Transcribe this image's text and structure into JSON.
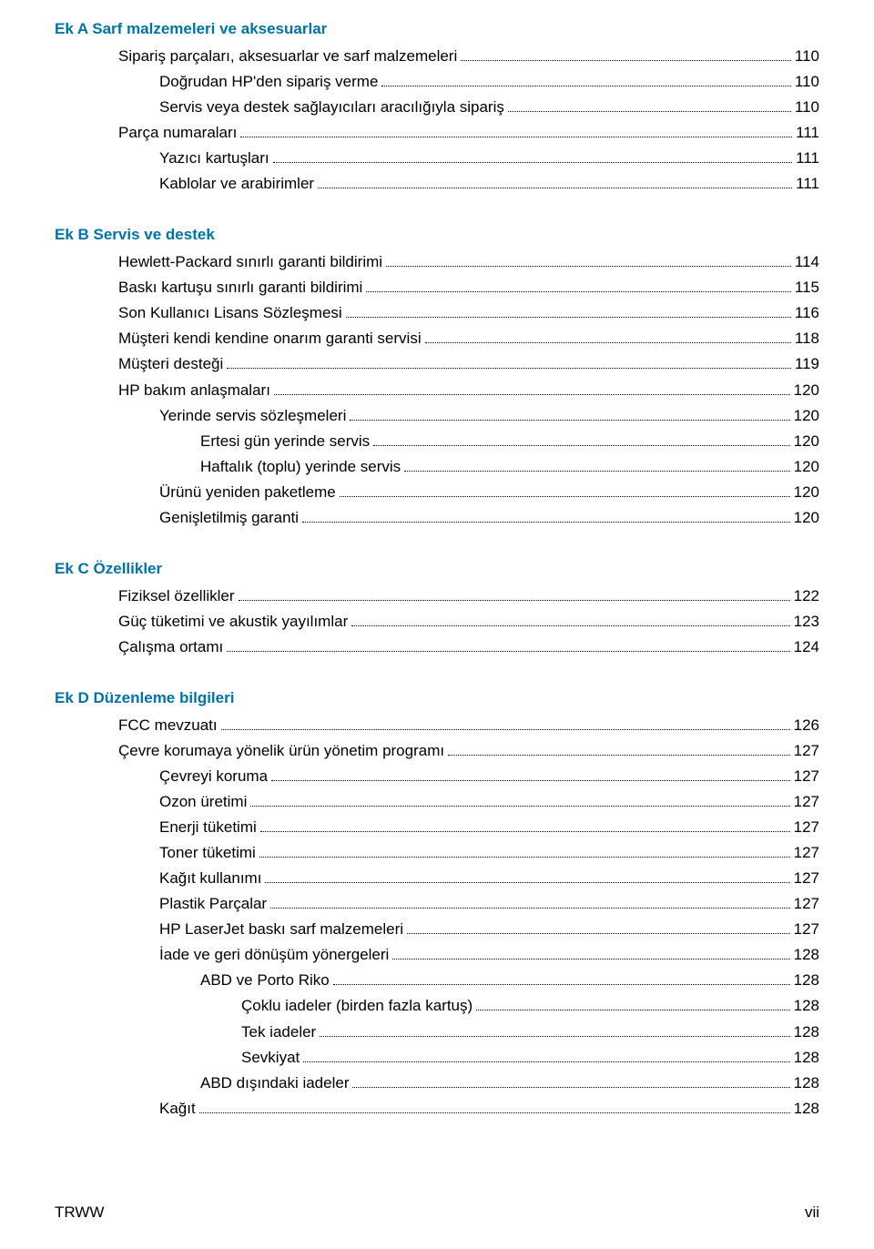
{
  "colors": {
    "heading": "#0073a8",
    "text": "#000000",
    "background": "#ffffff"
  },
  "typography": {
    "body_fontsize_pt": 12,
    "heading_fontsize_pt": 12,
    "heading_weight": "bold",
    "line_height": 1.65
  },
  "sections": [
    {
      "title": "Ek A  Sarf malzemeleri ve aksesuarlar",
      "entries": [
        {
          "label": "Sipariş parçaları, aksesuarlar ve sarf malzemeleri",
          "page": "110",
          "indent": 1
        },
        {
          "label": "Doğrudan HP'den sipariş verme",
          "page": "110",
          "indent": 2
        },
        {
          "label": "Servis veya destek sağlayıcıları aracılığıyla sipariş",
          "page": "110",
          "indent": 2
        },
        {
          "label": "Parça numaraları",
          "page": "111",
          "indent": 1
        },
        {
          "label": "Yazıcı kartuşları",
          "page": "111",
          "indent": 2
        },
        {
          "label": "Kablolar ve arabirimler",
          "page": "111",
          "indent": 2
        }
      ]
    },
    {
      "title": "Ek B  Servis ve destek",
      "entries": [
        {
          "label": "Hewlett-Packard sınırlı garanti bildirimi",
          "page": "114",
          "indent": 1
        },
        {
          "label": "Baskı kartuşu sınırlı garanti bildirimi",
          "page": "115",
          "indent": 1
        },
        {
          "label": "Son Kullanıcı Lisans Sözleşmesi",
          "page": "116",
          "indent": 1
        },
        {
          "label": "Müşteri kendi kendine onarım garanti servisi",
          "page": "118",
          "indent": 1
        },
        {
          "label": "Müşteri desteği",
          "page": "119",
          "indent": 1
        },
        {
          "label": "HP bakım anlaşmaları",
          "page": "120",
          "indent": 1
        },
        {
          "label": "Yerinde servis sözleşmeleri",
          "page": "120",
          "indent": 2
        },
        {
          "label": "Ertesi gün yerinde servis",
          "page": "120",
          "indent": 3
        },
        {
          "label": "Haftalık (toplu) yerinde servis",
          "page": "120",
          "indent": 3
        },
        {
          "label": "Ürünü yeniden paketleme",
          "page": "120",
          "indent": 2
        },
        {
          "label": "Genişletilmiş garanti",
          "page": "120",
          "indent": 2
        }
      ]
    },
    {
      "title": "Ek C  Özellikler",
      "entries": [
        {
          "label": "Fiziksel özellikler",
          "page": "122",
          "indent": 1
        },
        {
          "label": "Güç tüketimi ve akustik yayılımlar",
          "page": "123",
          "indent": 1
        },
        {
          "label": "Çalışma ortamı",
          "page": "124",
          "indent": 1
        }
      ]
    },
    {
      "title": "Ek D  Düzenleme bilgileri",
      "entries": [
        {
          "label": "FCC mevzuatı",
          "page": "126",
          "indent": 1
        },
        {
          "label": "Çevre korumaya yönelik ürün yönetim programı",
          "page": "127",
          "indent": 1
        },
        {
          "label": "Çevreyi koruma",
          "page": "127",
          "indent": 2
        },
        {
          "label": "Ozon üretimi",
          "page": "127",
          "indent": 2
        },
        {
          "label": "Enerji tüketimi",
          "page": "127",
          "indent": 2
        },
        {
          "label": "Toner tüketimi",
          "page": "127",
          "indent": 2
        },
        {
          "label": "Kağıt kullanımı",
          "page": "127",
          "indent": 2
        },
        {
          "label": "Plastik Parçalar",
          "page": "127",
          "indent": 2
        },
        {
          "label": "HP LaserJet baskı sarf malzemeleri",
          "page": "127",
          "indent": 2
        },
        {
          "label": "İade ve geri dönüşüm yönergeleri",
          "page": "128",
          "indent": 2
        },
        {
          "label": "ABD ve Porto Riko",
          "page": "128",
          "indent": 3
        },
        {
          "label": "Çoklu iadeler (birden fazla kartuş)",
          "page": "128",
          "indent": 4
        },
        {
          "label": "Tek iadeler",
          "page": "128",
          "indent": 4
        },
        {
          "label": "Sevkiyat",
          "page": "128",
          "indent": 4
        },
        {
          "label": "ABD dışındaki iadeler",
          "page": "128",
          "indent": 3
        },
        {
          "label": "Kağıt",
          "page": "128",
          "indent": 2
        }
      ]
    }
  ],
  "footer": {
    "left": "TRWW",
    "right": "vii"
  }
}
